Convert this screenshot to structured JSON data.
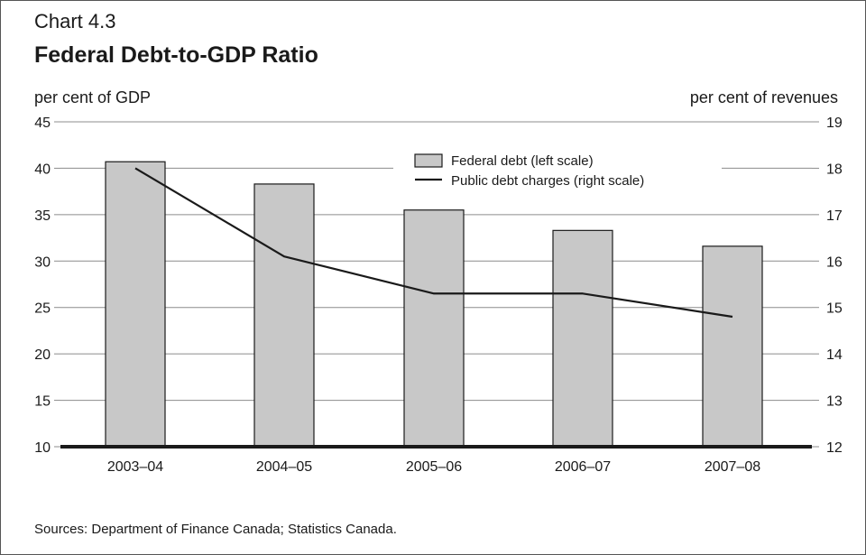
{
  "header": {
    "chart_number": "Chart 4.3",
    "title": "Federal Debt-to-GDP Ratio"
  },
  "axes": {
    "left_unit": "per cent of GDP",
    "right_unit": "per cent of revenues"
  },
  "footer": {
    "source": "Sources: Department of Finance Canada; Statistics Canada."
  },
  "colors": {
    "bar_fill": "#c8c8c8",
    "bar_stroke": "#1a1a1a",
    "line": "#1a1a1a",
    "grid": "#8c8c8c",
    "baseline": "#1a1a1a"
  },
  "chart_data": {
    "type": "bar",
    "categories": [
      "2003–04",
      "2004–05",
      "2005–06",
      "2006–07",
      "2007–08"
    ],
    "series": [
      {
        "name": "Federal debt (left scale)",
        "type": "bar",
        "axis": "left",
        "values": [
          40.7,
          38.3,
          35.5,
          33.3,
          31.6
        ]
      },
      {
        "name": "Public debt charges (right scale)",
        "type": "line",
        "axis": "right",
        "values": [
          18.0,
          16.1,
          15.3,
          15.3,
          14.8
        ]
      }
    ],
    "ylim": [
      10,
      45
    ],
    "yticks": [
      10,
      15,
      20,
      25,
      30,
      35,
      40,
      45
    ],
    "y2lim": [
      12,
      19
    ],
    "y2ticks": [
      12,
      13,
      14,
      15,
      16,
      17,
      18,
      19
    ],
    "grid": true,
    "legend_position": "top-right"
  }
}
